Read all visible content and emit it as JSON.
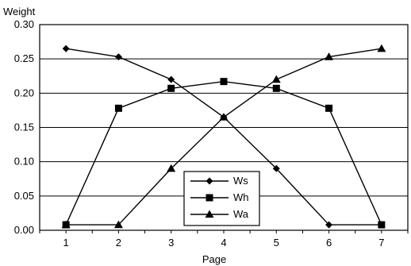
{
  "chart_data": {
    "type": "line",
    "title": "",
    "xlabel": "Page",
    "ylabel": "Weight",
    "x": [
      1,
      2,
      3,
      4,
      5,
      6,
      7
    ],
    "ylim": [
      0,
      0.3
    ],
    "yticks": [
      "0.00",
      "0.05",
      "0.10",
      "0.15",
      "0.20",
      "0.25",
      "0.30"
    ],
    "xticks": [
      "1",
      "2",
      "3",
      "4",
      "5",
      "6",
      "7"
    ],
    "grid": "horizontal",
    "legend": "bottom-center",
    "colors": {
      "line": "#000000",
      "grid": "#000000",
      "background": "#ffffff"
    },
    "series": [
      {
        "name": "Ws",
        "marker": "diamond",
        "values": [
          0.265,
          0.253,
          0.22,
          0.165,
          0.09,
          0.008,
          0.008
        ]
      },
      {
        "name": "Wh",
        "marker": "square",
        "values": [
          0.008,
          0.178,
          0.207,
          0.217,
          0.207,
          0.178,
          0.008
        ]
      },
      {
        "name": "Wa",
        "marker": "triangle",
        "values": [
          0.008,
          0.008,
          0.09,
          0.165,
          0.22,
          0.253,
          0.265
        ]
      }
    ]
  }
}
